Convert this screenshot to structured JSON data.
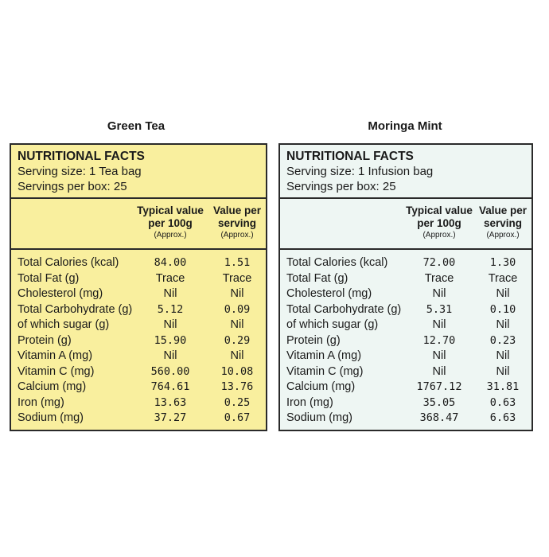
{
  "products": [
    {
      "title": "Green Tea",
      "bg": "#f9ef9e",
      "facts_heading": "NUTRITIONAL FACTS",
      "serving_size": "Serving size: 1 Tea bag",
      "servings_per_box": "Servings per box: 25",
      "col1": {
        "line1": "Typical value",
        "line2": "per 100g",
        "approx": "(Approx.)"
      },
      "col2": {
        "line1": "Value per",
        "line2": "serving",
        "approx": "(Approx.)"
      },
      "rows": [
        {
          "label": "Total Calories (kcal)",
          "per100": "84.00",
          "serving": "1.51"
        },
        {
          "label": "Total Fat (g)",
          "per100": "Trace",
          "serving": "Trace"
        },
        {
          "label": "Cholesterol (mg)",
          "per100": "Nil",
          "serving": "Nil"
        },
        {
          "label": "Total Carbohydrate (g)",
          "per100": "5.12",
          "serving": "0.09"
        },
        {
          "label": "of which sugar (g)",
          "per100": "Nil",
          "serving": "Nil"
        },
        {
          "label": "Protein (g)",
          "per100": "15.90",
          "serving": "0.29"
        },
        {
          "label": "Vitamin A (mg)",
          "per100": "Nil",
          "serving": "Nil"
        },
        {
          "label": "Vitamin C (mg)",
          "per100": "560.00",
          "serving": "10.08"
        },
        {
          "label": "Calcium (mg)",
          "per100": "764.61",
          "serving": "13.76"
        },
        {
          "label": "Iron (mg)",
          "per100": "13.63",
          "serving": "0.25"
        },
        {
          "label": "Sodium (mg)",
          "per100": "37.27",
          "serving": "0.67"
        }
      ]
    },
    {
      "title": "Moringa Mint",
      "bg": "#eef6f3",
      "facts_heading": "NUTRITIONAL FACTS",
      "serving_size": "Serving size: 1 Infusion bag",
      "servings_per_box": "Servings per box: 25",
      "col1": {
        "line1": "Typical value",
        "line2": "per 100g",
        "approx": "(Approx.)"
      },
      "col2": {
        "line1": "Value per",
        "line2": "serving",
        "approx": "(Approx.)"
      },
      "rows": [
        {
          "label": "Total Calories (kcal)",
          "per100": "72.00",
          "serving": "1.30"
        },
        {
          "label": "Total Fat (g)",
          "per100": "Trace",
          "serving": "Trace"
        },
        {
          "label": "Cholesterol (mg)",
          "per100": "Nil",
          "serving": "Nil"
        },
        {
          "label": "Total Carbohydrate (g)",
          "per100": "5.31",
          "serving": "0.10"
        },
        {
          "label": "of which sugar (g)",
          "per100": "Nil",
          "serving": "Nil"
        },
        {
          "label": "Protein (g)",
          "per100": "12.70",
          "serving": "0.23"
        },
        {
          "label": "Vitamin A (mg)",
          "per100": "Nil",
          "serving": "Nil"
        },
        {
          "label": "Vitamin C (mg)",
          "per100": "Nil",
          "serving": "Nil"
        },
        {
          "label": "Calcium (mg)",
          "per100": "1767.12",
          "serving": "31.81"
        },
        {
          "label": "Iron (mg)",
          "per100": "35.05",
          "serving": "0.63"
        },
        {
          "label": "Sodium (mg)",
          "per100": "368.47",
          "serving": "6.63"
        }
      ]
    }
  ]
}
